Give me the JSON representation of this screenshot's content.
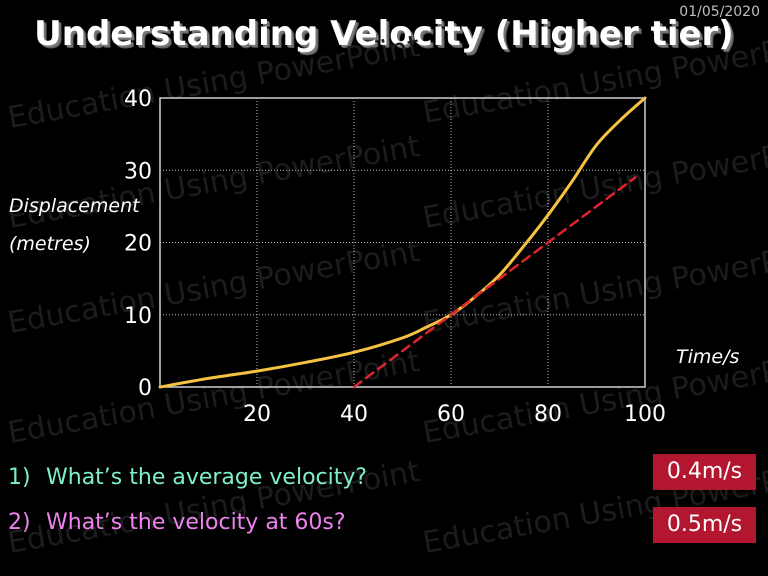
{
  "header": {
    "date": "01/05/2020",
    "title": "Understanding Velocity (Higher tier)"
  },
  "watermark_text": "Education Using PowerPoint",
  "chart_data": {
    "type": "line",
    "xlabel": "Time/s",
    "ylabel_line1": "Displacement",
    "ylabel_line2": "(metres)",
    "xlim": [
      0,
      100
    ],
    "ylim": [
      0,
      40
    ],
    "xticks": [
      20,
      40,
      60,
      80,
      100
    ],
    "yticks": [
      0,
      10,
      20,
      30,
      40
    ],
    "grid": true,
    "series": [
      {
        "style": "solid",
        "color": "#f5c242",
        "x": [
          0,
          10,
          20,
          30,
          40,
          50,
          55,
          60,
          65,
          70,
          75,
          80,
          85,
          90,
          95,
          100
        ],
        "y": [
          0,
          1.2,
          2.2,
          3.4,
          4.8,
          6.8,
          8.3,
          10,
          12.5,
          15.5,
          19.5,
          23.8,
          28.5,
          33.5,
          37,
          40
        ]
      },
      {
        "style": "dashed",
        "color": "#e0242e",
        "x": [
          40,
          98
        ],
        "y": [
          0,
          29
        ]
      }
    ]
  },
  "questions": [
    {
      "num": "1)",
      "text": "What’s the average velocity?",
      "answer": "0.4m/s"
    },
    {
      "num": "2)",
      "text": "What’s the velocity at 60s?",
      "answer": "0.5m/s"
    }
  ]
}
